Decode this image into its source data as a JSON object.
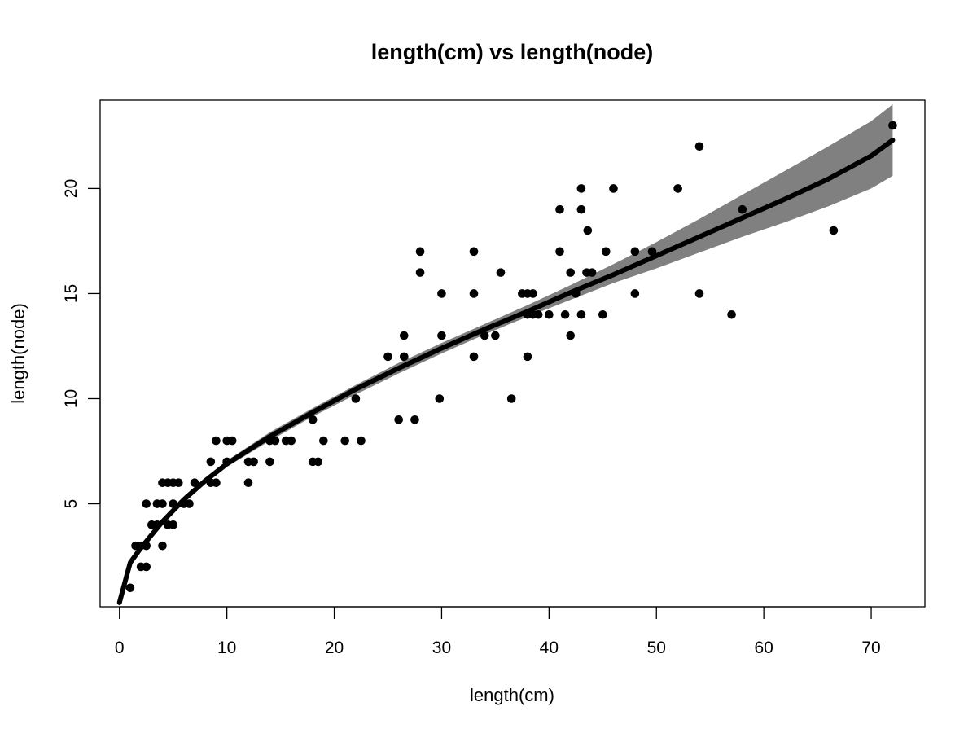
{
  "chart_data": {
    "type": "scatter",
    "title": "length(cm) vs length(node)",
    "xlabel": "length(cm)",
    "ylabel": "length(node)",
    "xlim": [
      -1.8,
      75
    ],
    "ylim": [
      0.1,
      24.2
    ],
    "x_ticks": [
      "0",
      "10",
      "20",
      "30",
      "40",
      "50",
      "60",
      "70"
    ],
    "y_ticks": [
      "5",
      "10",
      "15",
      "20"
    ],
    "grid": false,
    "legend": "none",
    "colors": {
      "points": "#000000",
      "fit_line": "#000000",
      "confidence_band": "#808080"
    },
    "points": [
      [
        1,
        1
      ],
      [
        1.5,
        3
      ],
      [
        2,
        2
      ],
      [
        2,
        3
      ],
      [
        2.5,
        2
      ],
      [
        2.5,
        3
      ],
      [
        2.5,
        5
      ],
      [
        3,
        4
      ],
      [
        3.5,
        4
      ],
      [
        3.5,
        5
      ],
      [
        4,
        3
      ],
      [
        4,
        5
      ],
      [
        4,
        6
      ],
      [
        4.5,
        4
      ],
      [
        4.5,
        6
      ],
      [
        5,
        4
      ],
      [
        5,
        5
      ],
      [
        5,
        6
      ],
      [
        5.5,
        6
      ],
      [
        6,
        5
      ],
      [
        6.5,
        5
      ],
      [
        7,
        6
      ],
      [
        8.5,
        6
      ],
      [
        8.5,
        7
      ],
      [
        9,
        6
      ],
      [
        9,
        8
      ],
      [
        10,
        7
      ],
      [
        10,
        8
      ],
      [
        10.5,
        8
      ],
      [
        12,
        6
      ],
      [
        12,
        7
      ],
      [
        12.5,
        7
      ],
      [
        14,
        7
      ],
      [
        14,
        8
      ],
      [
        14.5,
        8
      ],
      [
        15.5,
        8
      ],
      [
        16,
        8
      ],
      [
        18,
        7
      ],
      [
        18,
        9
      ],
      [
        18.5,
        7
      ],
      [
        19,
        8
      ],
      [
        21,
        8
      ],
      [
        22,
        10
      ],
      [
        22.5,
        8
      ],
      [
        25,
        12
      ],
      [
        26,
        9
      ],
      [
        26.5,
        12
      ],
      [
        26.5,
        13
      ],
      [
        27.5,
        9
      ],
      [
        28,
        16
      ],
      [
        28,
        17
      ],
      [
        29.8,
        10
      ],
      [
        30,
        13
      ],
      [
        30,
        15
      ],
      [
        33,
        12
      ],
      [
        33,
        15
      ],
      [
        33,
        17
      ],
      [
        34,
        13
      ],
      [
        35,
        13
      ],
      [
        35.5,
        16
      ],
      [
        36.5,
        10
      ],
      [
        37.5,
        15
      ],
      [
        38,
        12
      ],
      [
        38,
        14
      ],
      [
        38,
        15
      ],
      [
        38.5,
        14
      ],
      [
        38.5,
        15
      ],
      [
        39,
        14
      ],
      [
        40,
        14
      ],
      [
        41,
        17
      ],
      [
        41,
        19
      ],
      [
        41.5,
        14
      ],
      [
        42,
        13
      ],
      [
        42,
        16
      ],
      [
        42.5,
        15
      ],
      [
        43,
        14
      ],
      [
        43,
        19
      ],
      [
        43,
        20
      ],
      [
        43.5,
        16
      ],
      [
        43.6,
        18
      ],
      [
        44,
        16
      ],
      [
        45,
        14
      ],
      [
        45.3,
        17
      ],
      [
        46,
        20
      ],
      [
        48,
        15
      ],
      [
        48,
        17
      ],
      [
        49.6,
        17
      ],
      [
        52,
        20
      ],
      [
        54,
        15
      ],
      [
        54,
        22
      ],
      [
        57,
        14
      ],
      [
        58,
        19
      ],
      [
        66.5,
        18
      ],
      [
        72,
        23
      ]
    ],
    "fit_curve": {
      "x": [
        0,
        1,
        2,
        4,
        6,
        8,
        10,
        14,
        18,
        22,
        26,
        30,
        34,
        38,
        42,
        46,
        50,
        54,
        58,
        62,
        66,
        70,
        72
      ],
      "y": [
        0.3,
        2.2,
        2.9,
        4.15,
        5.2,
        6.1,
        6.9,
        8.2,
        9.35,
        10.45,
        11.45,
        12.4,
        13.3,
        14.15,
        15.05,
        15.9,
        16.8,
        17.7,
        18.6,
        19.5,
        20.45,
        21.55,
        22.3
      ]
    },
    "confidence_band": {
      "x": [
        0,
        1,
        2,
        4,
        6,
        8,
        10,
        14,
        18,
        22,
        26,
        30,
        34,
        38,
        42,
        46,
        50,
        54,
        58,
        62,
        66,
        70,
        72
      ],
      "upper": [
        0.5,
        2.3,
        3.0,
        4.3,
        5.35,
        6.25,
        7.05,
        8.4,
        9.55,
        10.65,
        11.7,
        12.65,
        13.55,
        14.45,
        15.4,
        16.4,
        17.45,
        18.55,
        19.7,
        20.85,
        22.0,
        23.2,
        24.0
      ],
      "lower": [
        0.1,
        2.1,
        2.8,
        4.0,
        5.05,
        5.95,
        6.75,
        8.0,
        9.15,
        10.2,
        11.2,
        12.15,
        13.05,
        13.9,
        14.7,
        15.5,
        16.2,
        16.95,
        17.7,
        18.4,
        19.15,
        20.0,
        20.6
      ]
    }
  }
}
